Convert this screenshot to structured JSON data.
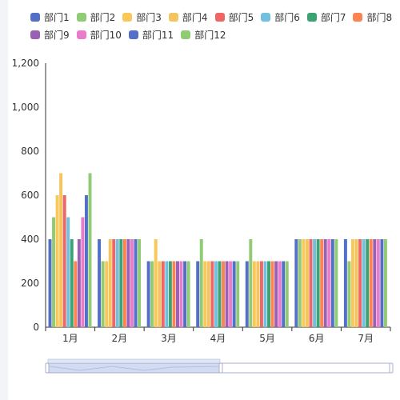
{
  "colors": {
    "axis": "#333333",
    "tick_text": "#333333",
    "zoom_border": "#a8b1c8",
    "zoom_fill": "#d3dbf2",
    "zoom_handle": "#dfe6f8"
  },
  "chart_data": {
    "type": "bar",
    "categories": [
      "1月",
      "2月",
      "3月",
      "4月",
      "5月",
      "6月",
      "7月"
    ],
    "ylim": [
      0,
      1200
    ],
    "yticks": [
      "0",
      "200",
      "400",
      "600",
      "800",
      "1,000",
      "1,200"
    ],
    "ytick_values": [
      0,
      200,
      400,
      600,
      800,
      1000,
      1200
    ],
    "grid": false,
    "legend_position": "top",
    "series": [
      {
        "name": "部门1",
        "color": "#5470c6",
        "values": [
          400,
          400,
          300,
          300,
          300,
          400,
          400
        ]
      },
      {
        "name": "部门2",
        "color": "#91cc75",
        "values": [
          500,
          300,
          300,
          400,
          400,
          400,
          300
        ]
      },
      {
        "name": "部门3",
        "color": "#fac858",
        "values": [
          600,
          300,
          400,
          300,
          300,
          400,
          400
        ]
      },
      {
        "name": "部门4",
        "color": "#f4c55f",
        "values": [
          700,
          400,
          300,
          300,
          300,
          400,
          400
        ]
      },
      {
        "name": "部门5",
        "color": "#ee6666",
        "values": [
          600,
          400,
          300,
          300,
          300,
          400,
          400
        ]
      },
      {
        "name": "部门6",
        "color": "#73c0de",
        "values": [
          500,
          400,
          300,
          300,
          300,
          400,
          400
        ]
      },
      {
        "name": "部门7",
        "color": "#3ba272",
        "values": [
          400,
          400,
          300,
          300,
          300,
          400,
          400
        ]
      },
      {
        "name": "部门8",
        "color": "#fc8452",
        "values": [
          300,
          400,
          300,
          300,
          300,
          400,
          400
        ]
      },
      {
        "name": "部门9",
        "color": "#9a60b4",
        "values": [
          400,
          400,
          300,
          300,
          300,
          400,
          400
        ]
      },
      {
        "name": "部门10",
        "color": "#ea7ccc",
        "values": [
          500,
          400,
          300,
          300,
          300,
          400,
          400
        ]
      },
      {
        "name": "部门11",
        "color": "#5470c6",
        "values": [
          600,
          400,
          300,
          300,
          300,
          400,
          400
        ]
      },
      {
        "name": "部门12",
        "color": "#91cc75",
        "values": [
          700,
          400,
          300,
          300,
          300,
          400,
          400
        ]
      }
    ]
  },
  "data_zoom": {
    "start": 0,
    "end": 50
  }
}
